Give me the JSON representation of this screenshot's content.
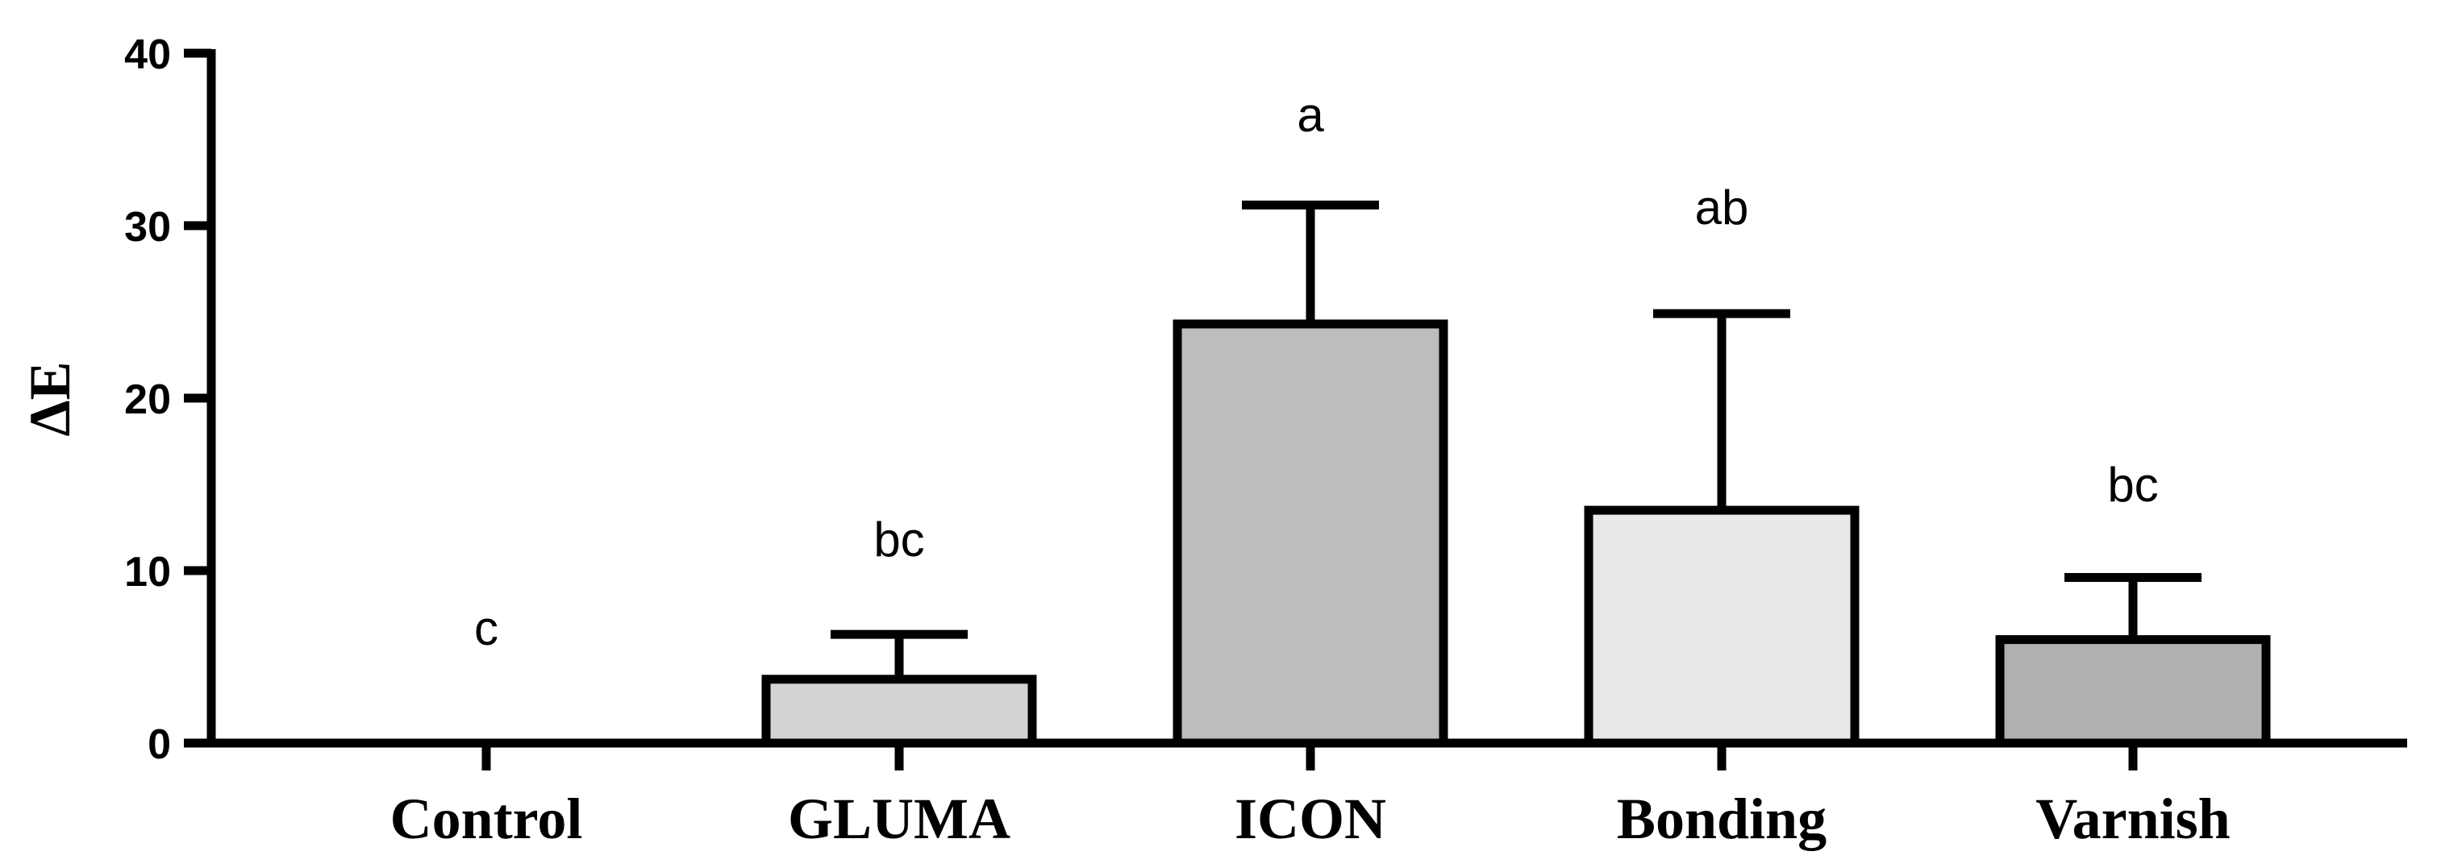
{
  "chart_data": {
    "type": "bar",
    "title": "",
    "xlabel": "",
    "ylabel": "ΔE",
    "ylim": [
      0,
      40
    ],
    "yticks": [
      0,
      10,
      20,
      30,
      40
    ],
    "grid": false,
    "categories": [
      "Control",
      "GLUMA",
      "ICON",
      "Bonding",
      "Varnish"
    ],
    "values": [
      0,
      3.7,
      24.3,
      13.5,
      6.0
    ],
    "error": [
      0,
      2.6,
      6.9,
      11.4,
      3.6
    ],
    "significance": [
      "c",
      "bc",
      "a",
      "ab",
      "bc"
    ],
    "colors": [
      "#d3d3d3",
      "#d3d3d3",
      "#bdbdbd",
      "#e8e8e8",
      "#b0b0b0"
    ]
  }
}
